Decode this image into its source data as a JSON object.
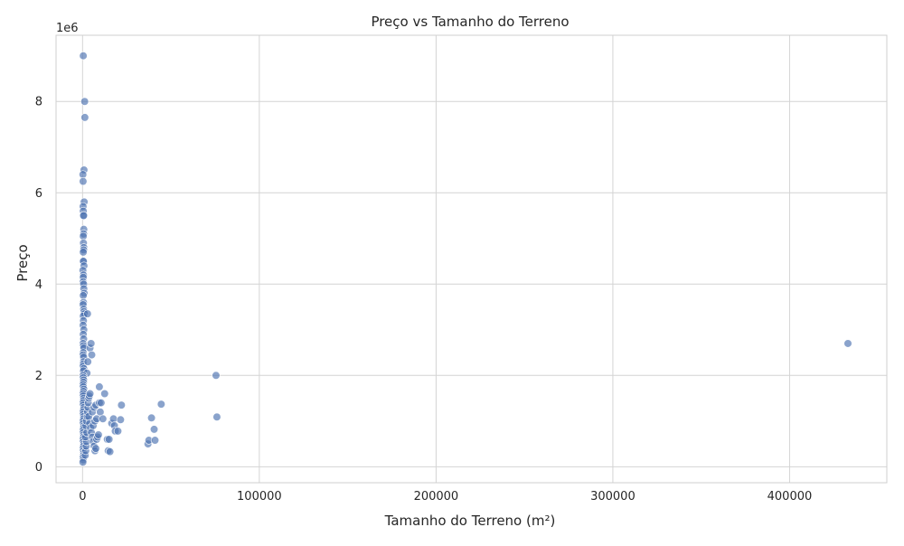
{
  "chart_data": {
    "type": "scatter",
    "title": "Preço vs Tamanho do Terreno",
    "xlabel": "Tamanho do Terreno (m²)",
    "ylabel": "Preço",
    "y_multiplier_label": "1e6",
    "xlim": [
      -15000,
      455000
    ],
    "ylim": [
      -350000,
      9450000
    ],
    "x_ticks": [
      0,
      100000,
      200000,
      300000,
      400000
    ],
    "x_tick_labels": [
      "0",
      "100000",
      "200000",
      "300000",
      "400000"
    ],
    "y_ticks": [
      0,
      2000000,
      4000000,
      6000000,
      8000000
    ],
    "y_tick_labels": [
      "0",
      "2",
      "4",
      "6",
      "8"
    ],
    "grid": true,
    "marker_color": "#4c72b0",
    "marker_opacity": 0.65,
    "series": [
      {
        "points": [
          [
            400,
            9000000
          ],
          [
            1200,
            8000000
          ],
          [
            1300,
            7650000
          ],
          [
            800,
            6500000
          ],
          [
            200,
            6400000
          ],
          [
            300,
            6250000
          ],
          [
            900,
            5800000
          ],
          [
            300,
            5700000
          ],
          [
            400,
            5600000
          ],
          [
            500,
            5500000
          ],
          [
            600,
            5500000
          ],
          [
            700,
            5200000
          ],
          [
            600,
            5100000
          ],
          [
            400,
            5050000
          ],
          [
            500,
            4900000
          ],
          [
            700,
            4800000
          ],
          [
            600,
            4750000
          ],
          [
            400,
            4700000
          ],
          [
            300,
            4500000
          ],
          [
            500,
            4500000
          ],
          [
            800,
            4400000
          ],
          [
            200,
            4300000
          ],
          [
            500,
            4200000
          ],
          [
            400,
            4150000
          ],
          [
            300,
            4050000
          ],
          [
            600,
            4000000
          ],
          [
            700,
            3900000
          ],
          [
            900,
            3800000
          ],
          [
            400,
            3750000
          ],
          [
            500,
            3600000
          ],
          [
            300,
            3550000
          ],
          [
            600,
            3450000
          ],
          [
            800,
            3400000
          ],
          [
            1000,
            3350000
          ],
          [
            400,
            3300000
          ],
          [
            500,
            3200000
          ],
          [
            300,
            3100000
          ],
          [
            700,
            3000000
          ],
          [
            400,
            2900000
          ],
          [
            600,
            2800000
          ],
          [
            300,
            2700000
          ],
          [
            500,
            2650000
          ],
          [
            700,
            2600000
          ],
          [
            400,
            2500000
          ],
          [
            300,
            2450000
          ],
          [
            600,
            2400000
          ],
          [
            500,
            2300000
          ],
          [
            400,
            2250000
          ],
          [
            300,
            2200000
          ],
          [
            700,
            2150000
          ],
          [
            500,
            2100000
          ],
          [
            2500,
            2050000
          ],
          [
            300,
            2000000
          ],
          [
            400,
            1950000
          ],
          [
            600,
            1900000
          ],
          [
            500,
            1850000
          ],
          [
            300,
            1800000
          ],
          [
            400,
            1750000
          ],
          [
            700,
            1700000
          ],
          [
            500,
            1650000
          ],
          [
            300,
            1600000
          ],
          [
            400,
            1550000
          ],
          [
            600,
            1500000
          ],
          [
            500,
            1450000
          ],
          [
            300,
            1400000
          ],
          [
            400,
            1350000
          ],
          [
            700,
            1300000
          ],
          [
            500,
            1250000
          ],
          [
            300,
            1200000
          ],
          [
            400,
            1150000
          ],
          [
            600,
            1100000
          ],
          [
            500,
            1050000
          ],
          [
            300,
            1000000
          ],
          [
            400,
            950000
          ],
          [
            700,
            900000
          ],
          [
            500,
            850000
          ],
          [
            300,
            800000
          ],
          [
            400,
            750000
          ],
          [
            600,
            700000
          ],
          [
            500,
            650000
          ],
          [
            300,
            600000
          ],
          [
            400,
            550000
          ],
          [
            700,
            500000
          ],
          [
            500,
            450000
          ],
          [
            300,
            400000
          ],
          [
            400,
            350000
          ],
          [
            600,
            300000
          ],
          [
            500,
            250000
          ],
          [
            300,
            200000
          ],
          [
            400,
            150000
          ],
          [
            200,
            100000
          ],
          [
            1500,
            250000
          ],
          [
            1800,
            350000
          ],
          [
            2000,
            450000
          ],
          [
            2200,
            550000
          ],
          [
            1600,
            650000
          ],
          [
            2400,
            750000
          ],
          [
            1900,
            900000
          ],
          [
            2100,
            1000000
          ],
          [
            2600,
            1100000
          ],
          [
            2800,
            1200000
          ],
          [
            3000,
            1300000
          ],
          [
            3200,
            1400000
          ],
          [
            3500,
            1500000
          ],
          [
            3800,
            1550000
          ],
          [
            4200,
            1600000
          ],
          [
            3000,
            2300000
          ],
          [
            4200,
            2600000
          ],
          [
            4800,
            2700000
          ],
          [
            5200,
            2450000
          ],
          [
            2800,
            3350000
          ],
          [
            3500,
            1100000
          ],
          [
            4000,
            950000
          ],
          [
            4500,
            850000
          ],
          [
            5000,
            750000
          ],
          [
            5500,
            650000
          ],
          [
            6000,
            550000
          ],
          [
            6500,
            450000
          ],
          [
            7000,
            350000
          ],
          [
            7500,
            400000
          ],
          [
            8000,
            600000
          ],
          [
            8500,
            650000
          ],
          [
            9000,
            700000
          ],
          [
            6000,
            900000
          ],
          [
            7000,
            1000000
          ],
          [
            8000,
            1050000
          ],
          [
            5500,
            1200000
          ],
          [
            6500,
            1300000
          ],
          [
            7500,
            1350000
          ],
          [
            9500,
            1400000
          ],
          [
            10500,
            1400000
          ],
          [
            9500,
            1750000
          ],
          [
            12500,
            1600000
          ],
          [
            10000,
            1200000
          ],
          [
            11500,
            1050000
          ],
          [
            14000,
            600000
          ],
          [
            14500,
            350000
          ],
          [
            15500,
            330000
          ],
          [
            15000,
            600000
          ],
          [
            16500,
            950000
          ],
          [
            17500,
            1050000
          ],
          [
            18000,
            900000
          ],
          [
            18500,
            780000
          ],
          [
            20000,
            780000
          ],
          [
            21500,
            1030000
          ],
          [
            22000,
            1350000
          ],
          [
            37000,
            500000
          ],
          [
            37500,
            580000
          ],
          [
            39000,
            1070000
          ],
          [
            40500,
            820000
          ],
          [
            41000,
            580000
          ],
          [
            44500,
            1370000
          ],
          [
            75500,
            2000000
          ],
          [
            76000,
            1090000
          ],
          [
            433000,
            2700000
          ]
        ]
      }
    ]
  }
}
